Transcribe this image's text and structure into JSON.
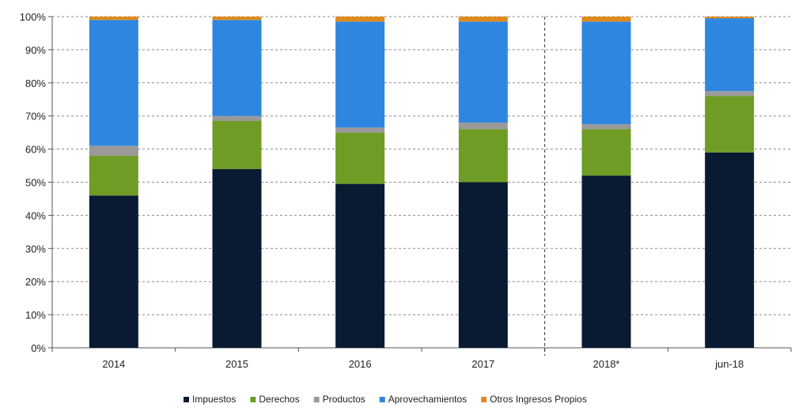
{
  "chart_data": {
    "type": "bar",
    "stacked": true,
    "categories": [
      "2014",
      "2015",
      "2016",
      "2017",
      "2018*",
      "jun-18"
    ],
    "series": [
      {
        "name": "Impuestos",
        "color": "#0b1a33",
        "values": [
          46,
          54,
          49.5,
          50,
          52,
          59
        ]
      },
      {
        "name": "Derechos",
        "color": "#6f9c24",
        "values": [
          12,
          14.5,
          15.5,
          16,
          14,
          17
        ]
      },
      {
        "name": "Productos",
        "color": "#9a9a9a",
        "values": [
          3,
          1.5,
          1.5,
          2,
          1.5,
          1.5
        ]
      },
      {
        "name": "Aprovechamientos",
        "color": "#2f86e0",
        "values": [
          38,
          29,
          32,
          30.5,
          31,
          22
        ]
      },
      {
        "name": "Otros Ingresos Propios",
        "color": "#e08a1c",
        "values": [
          1,
          1,
          1.5,
          1.5,
          1.5,
          0.5
        ]
      }
    ],
    "yticks": [
      "0%",
      "10%",
      "20%",
      "30%",
      "40%",
      "50%",
      "60%",
      "70%",
      "80%",
      "90%",
      "100%"
    ],
    "ylim": [
      0,
      100
    ],
    "grid": true,
    "separator_after": "2017",
    "legend_position": "bottom"
  }
}
